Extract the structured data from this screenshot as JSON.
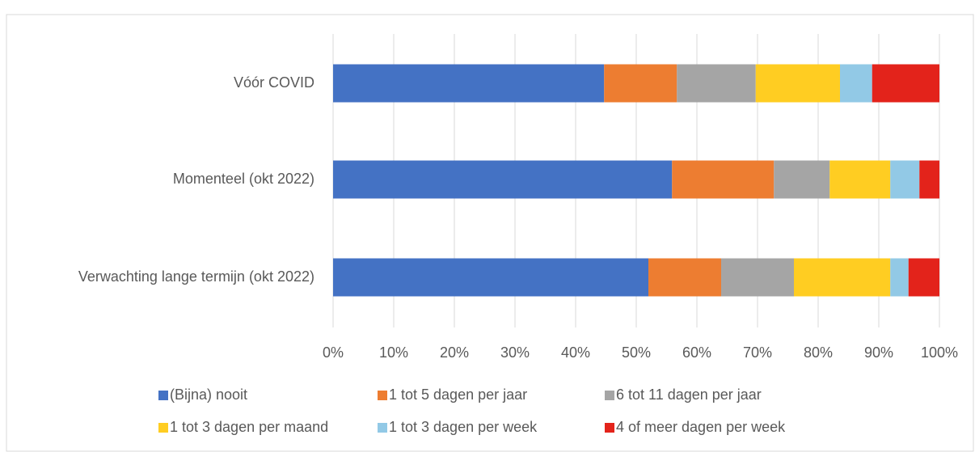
{
  "chart_data": {
    "type": "stacked_barh",
    "categories": [
      "Vóór COVID",
      "Momenteel (okt 2022)",
      "Verwachting lange termijn (okt 2022)"
    ],
    "series": [
      {
        "name": "(Bijna) nooit",
        "color": "#4472c4",
        "values": [
          44.7,
          55.9,
          52.0
        ]
      },
      {
        "name": "1 tot 5 dagen per jaar",
        "color": "#ed7d31",
        "values": [
          12.0,
          16.8,
          12.0
        ]
      },
      {
        "name": "6 tot 11 dagen per jaar",
        "color": "#a5a5a5",
        "values": [
          13.0,
          9.2,
          12.0
        ]
      },
      {
        "name": "1 tot 3 dagen per maand",
        "color": "#ffcd22",
        "values": [
          13.9,
          10.0,
          15.9
        ]
      },
      {
        "name": "1 tot 3 dagen per week",
        "color": "#92c9e6",
        "values": [
          5.3,
          4.8,
          3.0
        ]
      },
      {
        "name": "4 of meer dagen per week",
        "color": "#e3231b",
        "values": [
          11.1,
          3.3,
          5.1
        ]
      }
    ],
    "xlim": [
      0,
      100
    ],
    "xticks": [
      {
        "value": 0,
        "label": "0%"
      },
      {
        "value": 10,
        "label": "10%"
      },
      {
        "value": 20,
        "label": "20%"
      },
      {
        "value": 30,
        "label": "30%"
      },
      {
        "value": 40,
        "label": "40%"
      },
      {
        "value": 50,
        "label": "50%"
      },
      {
        "value": 60,
        "label": "60%"
      },
      {
        "value": 70,
        "label": "70%"
      },
      {
        "value": 80,
        "label": "80%"
      },
      {
        "value": 90,
        "label": "90%"
      },
      {
        "value": 100,
        "label": "100%"
      }
    ],
    "grid": true,
    "legend": "bottom"
  }
}
